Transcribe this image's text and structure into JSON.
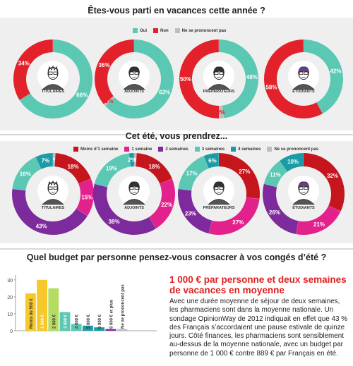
{
  "colors": {
    "teal": "#5bc8b4",
    "red": "#e2212b",
    "gray": "#bdbdbd",
    "dark_red": "#c4161c",
    "pink": "#e3218d",
    "purple": "#7d2a9c",
    "blue_teal": "#1a9ba6",
    "green": "#b6db62",
    "yellow": "#f6c82a",
    "band_bg": "#efefef",
    "divider": "#7dd3c4"
  },
  "section1": {
    "title": "Êtes-vous parti en vacances cette année ?",
    "legend": [
      {
        "label": "Oui",
        "color": "#5bc8b4"
      },
      {
        "label": "Non",
        "color": "#e2212b"
      },
      {
        "label": "Ne se prononcent pas",
        "color": "#bdbdbd"
      }
    ]
  },
  "section2": {
    "title": "Cet été, vous prendrez...",
    "legend": [
      {
        "label": "Moins d’1 semaine",
        "color": "#c4161c"
      },
      {
        "label": "1 semaine",
        "color": "#e3218d"
      },
      {
        "label": "2 semaines",
        "color": "#7d2a9c"
      },
      {
        "label": "3 semaines",
        "color": "#5bc8b4"
      },
      {
        "label": "4 semaines",
        "color": "#1a9ba6"
      },
      {
        "label": "Ne se prononcent pas",
        "color": "#bdbdbd"
      }
    ]
  },
  "section3": {
    "title": "Quel budget par personne pensez-vous consacrer à vos congés d’été ?"
  },
  "article": {
    "heading": "1 000 € par personne et deux semaines de vacances en moyenne",
    "body": "Avec une durée moyenne de séjour de deux semaines, les pharmaciens sont dans la moyenne nationale. Un sondage OpinionWay de 2012 indiquait en effet que 43 % des Français s’accordaient une pause estivale de quinze jours. Côté finances, les pharmaciens sont sensiblement au-dessus de la moyenne nationale, avec un budget par personne de 1 000 € contre 889 € par Français en été."
  },
  "chart_data": [
    {
      "type": "pie",
      "title": "Êtes-vous parti en vacances cette année ?",
      "series": [
        "Oui",
        "Non",
        "Ne se prononcent pas"
      ],
      "charts": [
        {
          "label": "TITULAIRES",
          "values": [
            66,
            34,
            0
          ],
          "labels": [
            "66%",
            "34%",
            ""
          ]
        },
        {
          "label": "ADJOINTS",
          "values": [
            63,
            36,
            1
          ],
          "labels": [
            "63%",
            "36%",
            "1%"
          ]
        },
        {
          "label": "PRÉPARATEURS",
          "values": [
            48,
            50,
            2
          ],
          "labels": [
            "48%",
            "50%",
            "2%"
          ]
        },
        {
          "label": "ÉTUDIANTS",
          "values": [
            42,
            58,
            0
          ],
          "labels": [
            "42%",
            "58%",
            ""
          ]
        }
      ]
    },
    {
      "type": "pie",
      "title": "Cet été, vous prendrez...",
      "series": [
        "Moins d’1 semaine",
        "1 semaine",
        "2 semaines",
        "3 semaines",
        "4 semaines",
        "Ne se prononcent pas"
      ],
      "charts": [
        {
          "label": "TITULAIRES",
          "values": [
            18,
            15,
            43,
            16,
            7,
            1
          ],
          "labels": [
            "18%",
            "15%",
            "43%",
            "16%",
            "7%",
            "1%"
          ]
        },
        {
          "label": "ADJOINTS",
          "values": [
            18,
            22,
            38,
            19,
            2,
            1
          ],
          "labels": [
            "18%",
            "22%",
            "38%",
            "19%",
            "2%",
            "1%"
          ]
        },
        {
          "label": "PRÉPARATEURS",
          "values": [
            27,
            27,
            23,
            17,
            6,
            0
          ],
          "labels": [
            "27%",
            "27%",
            "23%",
            "17%",
            "6%",
            ""
          ]
        },
        {
          "label": "ÉTUDIANTS",
          "values": [
            32,
            21,
            26,
            11,
            10,
            0
          ],
          "labels": [
            "32%",
            "21%",
            "26%",
            "11%",
            "10%",
            ""
          ]
        }
      ]
    },
    {
      "type": "bar",
      "title": "Quel budget par personne pensez-vous consacrer à vos congés d’été ?",
      "categories": [
        "Moins de 500 €",
        "1 000 €",
        "2 000 €",
        "3 000 €",
        "4 000 €",
        "5 000 €",
        "6 000 €",
        "8 000 € et plus",
        "Ne se prononcent pas"
      ],
      "values": [
        22,
        30,
        25,
        11,
        4,
        3,
        2,
        1,
        1
      ],
      "colors": [
        "#f6c82a",
        "#f6c82a",
        "#b6db62",
        "#5bc8b4",
        "#5bc8b4",
        "#1a9ba6",
        "#1a9ba6",
        "#7d2a9c",
        "#bdbdbd"
      ],
      "yticks": [
        0,
        10,
        20,
        30
      ],
      "ylim": [
        0,
        32
      ]
    }
  ]
}
